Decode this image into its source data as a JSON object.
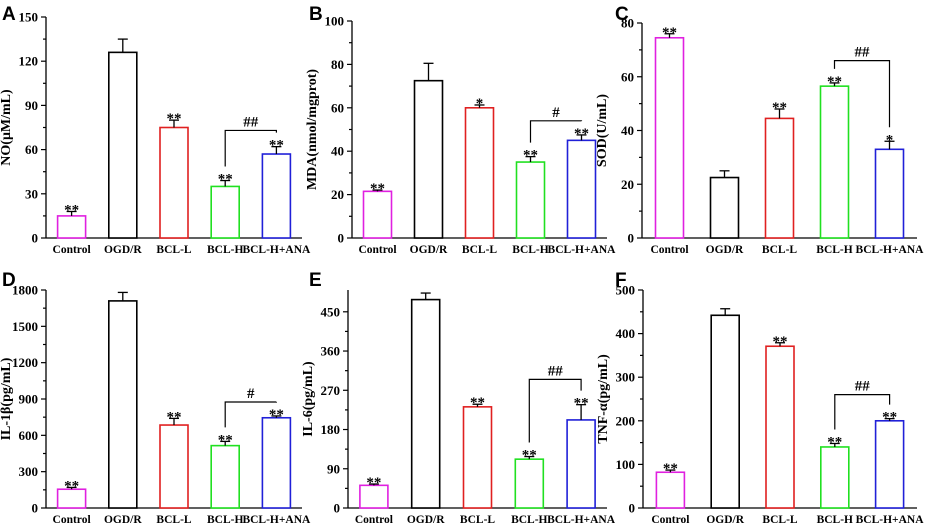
{
  "figure": {
    "categories": [
      "Control",
      "OGD/R",
      "BCL-L",
      "BCL-H",
      "BCL-H+ANA"
    ],
    "colors": [
      "#e020e0",
      "#000000",
      "#e02020",
      "#20e020",
      "#2020d8"
    ]
  },
  "chart_data": [
    {
      "type": "bar",
      "letter": "A",
      "ylabel": "NO(μM/mL)",
      "ylim": [
        0,
        150
      ],
      "ticks": [
        "0",
        "30",
        "60",
        "90",
        "120",
        "150"
      ],
      "values": [
        15,
        126,
        75,
        35,
        57
      ],
      "errors": [
        3,
        9,
        5,
        4,
        5
      ],
      "sig": [
        "**",
        "",
        "**",
        "**",
        "**"
      ],
      "bracket": {
        "from": 3,
        "to": 4,
        "label": "##",
        "y": 73
      }
    },
    {
      "type": "bar",
      "letter": "B",
      "ylabel": "MDA(nmol/mgprot)",
      "ylim": [
        0,
        100
      ],
      "ticks": [
        "0",
        "20",
        "40",
        "60",
        "80",
        "100"
      ],
      "values": [
        21.5,
        72.5,
        60,
        35,
        45
      ],
      "errors": [
        0.6,
        8,
        1.3,
        2.5,
        2.5
      ],
      "sig": [
        "**",
        "",
        "*",
        "**",
        "**"
      ],
      "bracket": {
        "from": 3,
        "to": 4,
        "label": "#",
        "y": 54
      }
    },
    {
      "type": "bar",
      "letter": "C",
      "ylabel": "SOD(U/mL)",
      "ylim": [
        0,
        80
      ],
      "ticks": [
        "0",
        "20",
        "40",
        "60",
        "80"
      ],
      "values": [
        74.5,
        22.5,
        44.5,
        56.5,
        33
      ],
      "errors": [
        1.5,
        2.5,
        3.5,
        1.2,
        3
      ],
      "sig": [
        "**",
        "",
        "**",
        "**",
        "*"
      ],
      "bracket": {
        "from": 3,
        "to": 4,
        "label": "##",
        "y": 66
      }
    },
    {
      "type": "bar",
      "letter": "D",
      "ylabel": "IL-1β(pg/mL)",
      "ylim": [
        0,
        1800
      ],
      "ticks": [
        "0",
        "300",
        "600",
        "900",
        "1200",
        "1500",
        "1800"
      ],
      "values": [
        155,
        1710,
        685,
        515,
        745
      ],
      "errors": [
        15,
        70,
        55,
        35,
        15
      ],
      "sig": [
        "**",
        "",
        "**",
        "**",
        "**"
      ],
      "bracket": {
        "from": 3,
        "to": 4,
        "label": "#",
        "y": 875
      }
    },
    {
      "type": "bar",
      "letter": "E",
      "ylabel": "IL-6(pg/mL)",
      "ylim": [
        0,
        500
      ],
      "ticks": [
        "0",
        "90",
        "180",
        "270",
        "360",
        "450"
      ],
      "values": [
        52,
        478,
        232,
        112,
        202
      ],
      "errors": [
        3,
        15,
        6,
        6,
        35
      ],
      "sig": [
        "**",
        "",
        "**",
        "**",
        "**"
      ],
      "bracket": {
        "from": 3,
        "to": 4,
        "label": "##",
        "y": 295
      }
    },
    {
      "type": "bar",
      "letter": "F",
      "ylabel": "TNF-α(pg/mL)",
      "ylim": [
        0,
        500
      ],
      "ticks": [
        "0",
        "100",
        "200",
        "300",
        "400",
        "500"
      ],
      "values": [
        82,
        442,
        371,
        140,
        200
      ],
      "errors": [
        5,
        15,
        8,
        8,
        5
      ],
      "sig": [
        "**",
        "",
        "**",
        "**",
        "**"
      ],
      "bracket": {
        "from": 3,
        "to": 4,
        "label": "##",
        "y": 260
      }
    }
  ]
}
